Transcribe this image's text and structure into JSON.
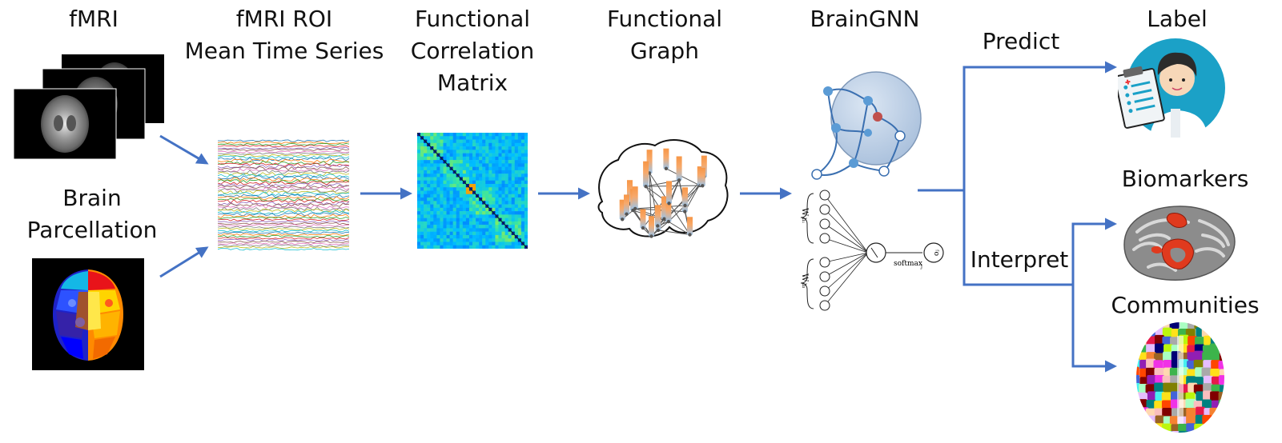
{
  "stages": {
    "fmri": "fMRI",
    "roi_series": [
      "fMRI ROI",
      "Mean Time Series"
    ],
    "correlation": [
      "Functional",
      "Correlation",
      "Matrix"
    ],
    "graph": [
      "Functional",
      "Graph"
    ],
    "braingnn": "BrainGNN",
    "parcellation": [
      "Brain",
      "Parcellation"
    ],
    "label": "Label",
    "biomarkers": "Biomarkers",
    "communities": "Communities"
  },
  "edges": {
    "predict": "Predict",
    "interpret": "Interpret"
  },
  "network_math": {
    "w_top": "W",
    "w_top_sub": "h₁",
    "w_bottom": "W",
    "w_bottom_sub": "hₗ",
    "softmax": "softmax",
    "softmax_sub": "j",
    "output": "oⱼ"
  },
  "colors": {
    "arrow": "#4472c4",
    "brain_gnn_sphere": "#b8cce4",
    "node": "#5b9bd5",
    "highlight_node": "#c0504d",
    "graph_bar_top": "#f79646",
    "graph_bar_bottom": "#9dc3e6",
    "doctor_bg": "#1ba1c7",
    "cortex_gray": "#8c8c8c",
    "biomarker_red": "#e03a1e"
  }
}
